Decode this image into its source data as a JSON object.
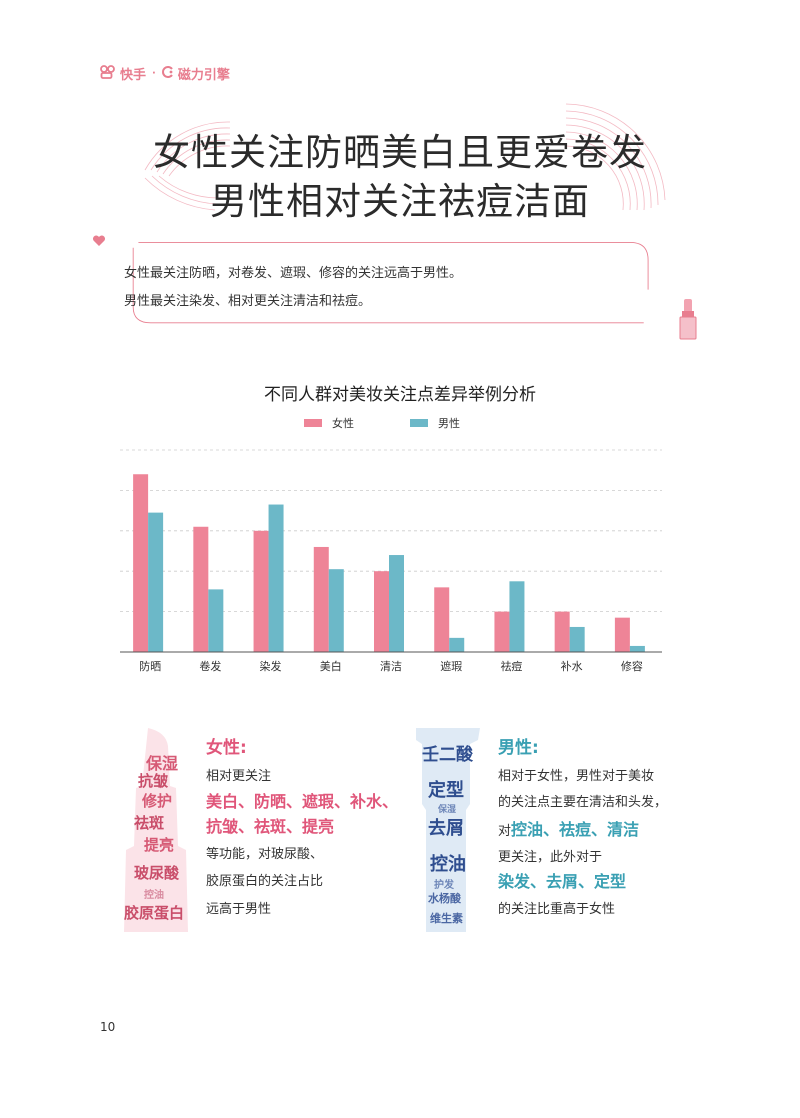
{
  "brand": {
    "kuaishou": "快手",
    "sep": "·",
    "cili": "磁力引擎"
  },
  "title": {
    "line1": "女性关注防晒美白且更爱卷发",
    "line2": "男性相对关注祛痘洁面"
  },
  "summary": {
    "line1": "女性最关注防晒，对卷发、遮瑕、修容的关注远高于男性。",
    "line2": "男性最关注染发、相对更关注清洁和祛痘。"
  },
  "colors": {
    "female": "#ee8497",
    "male": "#6cb8c8",
    "accent": "#e87e8f"
  },
  "chart_data": {
    "type": "bar",
    "title": "不同人群对美妆关注点差异举例分析",
    "categories": [
      "防晒",
      "卷发",
      "染发",
      "美白",
      "清洁",
      "遮瑕",
      "祛痘",
      "补水",
      "修容"
    ],
    "series": [
      {
        "name": "女性",
        "values": [
          4.4,
          3.1,
          3.0,
          2.6,
          2.0,
          1.6,
          1.0,
          1.0,
          0.85
        ]
      },
      {
        "name": "男性",
        "values": [
          3.45,
          1.55,
          3.65,
          2.05,
          2.4,
          0.35,
          1.75,
          0.62,
          0.15
        ]
      }
    ],
    "ylim": [
      0,
      5
    ],
    "grid": true,
    "legend": "top-center"
  },
  "female": {
    "title": "女性:",
    "p1": "相对更关注",
    "hl1": "美白、防晒、遮瑕、补水、",
    "hl2": "抗皱、祛斑、提亮",
    "p2": "等功能，对玻尿酸、",
    "p3": "胶原蛋白的关注占比",
    "p4": "远高于男性",
    "cloud": [
      "保湿",
      "抗皱",
      "修护",
      "祛斑",
      "提亮",
      "玻尿酸",
      "控油",
      "胶原蛋白"
    ]
  },
  "male": {
    "title": "男性:",
    "p1": "相对于女性，男性对于美妆",
    "p2": "的关注点主要在清洁和头发，",
    "p3": "对",
    "hl1": "控油、祛痘、清洁",
    "p4": "更关注，此外对于",
    "hl2": "染发、去屑、定型",
    "p5": "的关注比重高于女性",
    "cloud": [
      "壬二酸",
      "定型",
      "去屑",
      "控油",
      "保湿",
      "护发",
      "水杨酸",
      "维生素"
    ]
  },
  "page_number": "10"
}
